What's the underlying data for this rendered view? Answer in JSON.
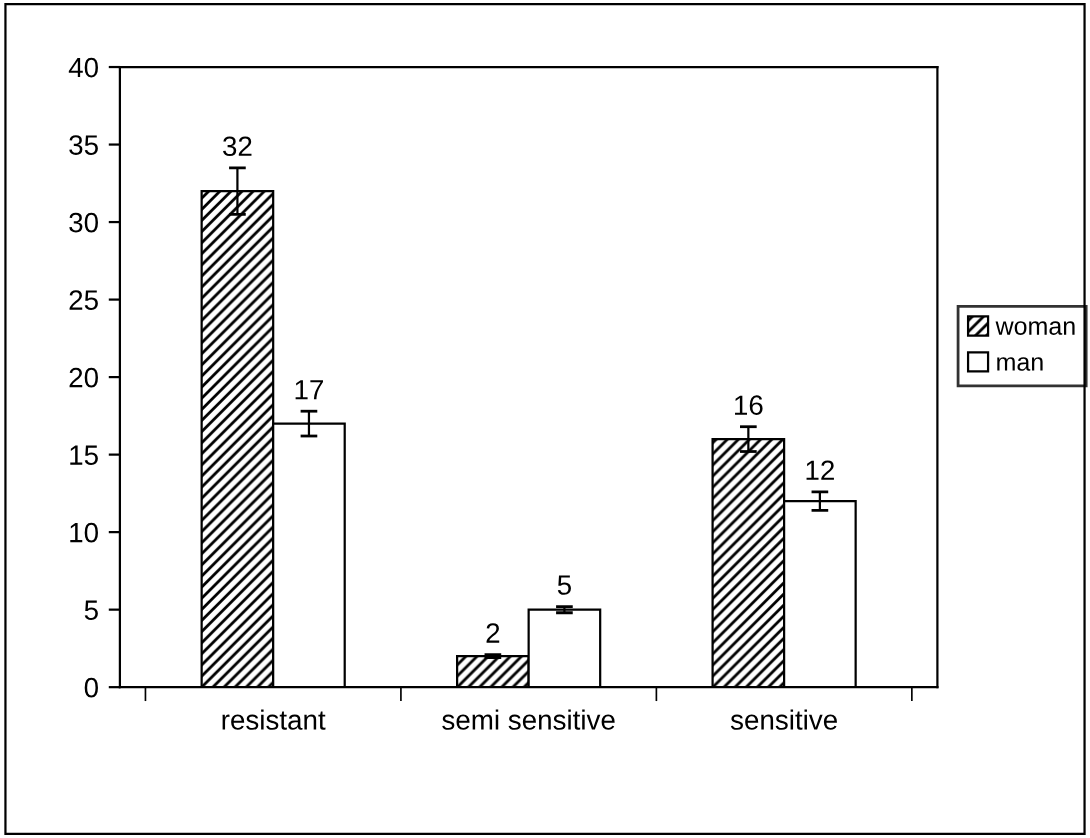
{
  "chart_data": {
    "type": "bar",
    "categories": [
      "resistant",
      "semi sensitive",
      "sensitive"
    ],
    "series": [
      {
        "name": "woman",
        "color": "#000000",
        "values": [
          32,
          2,
          16
        ],
        "errors": [
          1.5,
          0.1,
          0.8
        ]
      },
      {
        "name": "man",
        "color": "#ffffff",
        "values": [
          17,
          5,
          12
        ],
        "errors": [
          0.8,
          0.2,
          0.6
        ]
      }
    ],
    "ylim": [
      0,
      40
    ],
    "yticks": [
      0,
      5,
      10,
      15,
      20,
      25,
      30,
      35,
      40
    ],
    "data_labels": true,
    "grid": false,
    "legend": "right"
  }
}
